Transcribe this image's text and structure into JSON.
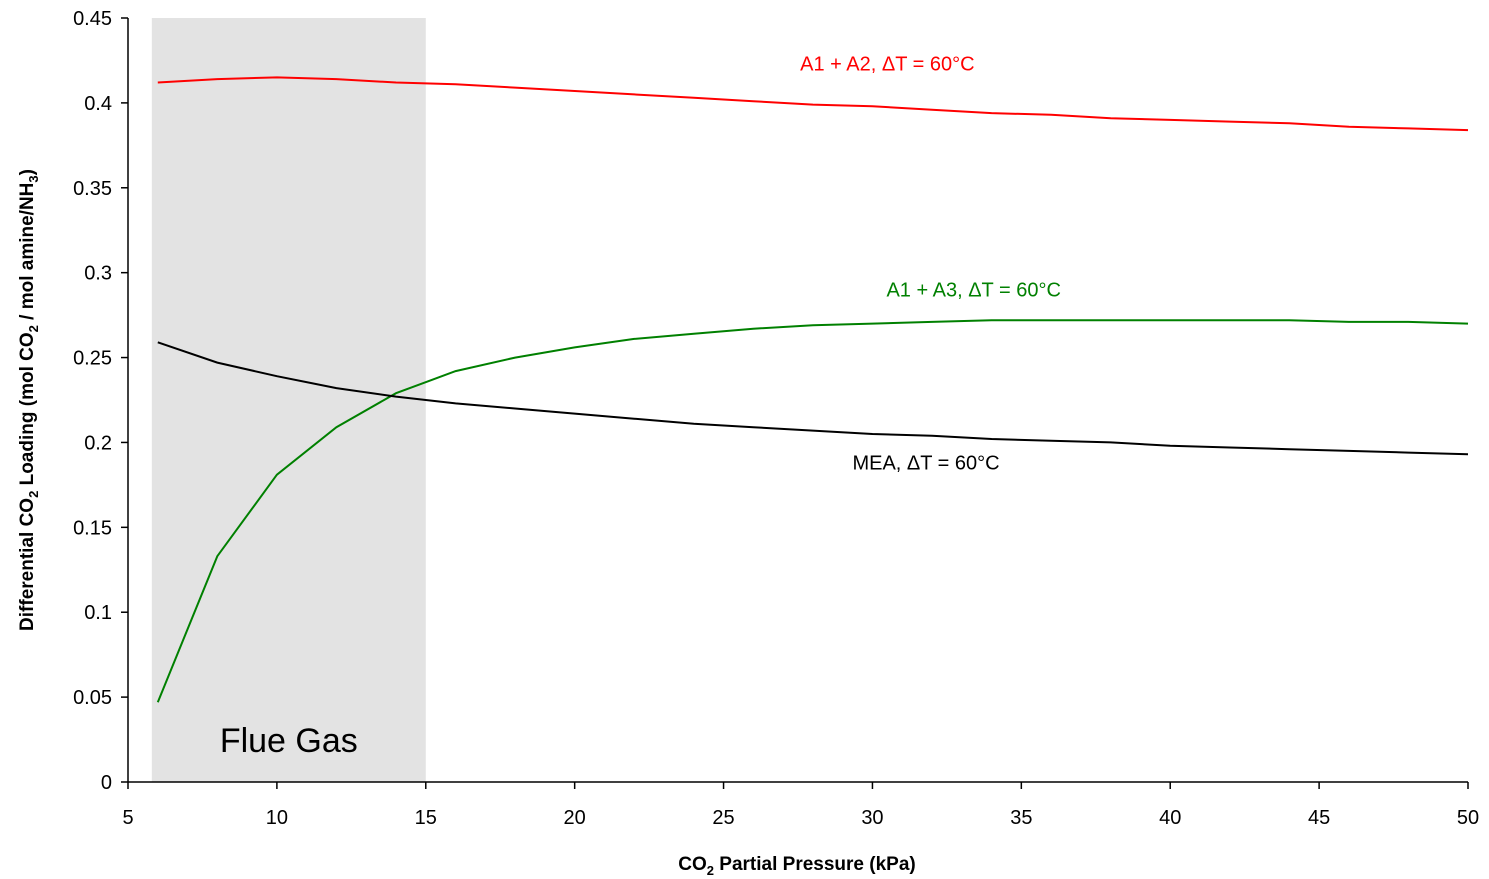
{
  "chart_data": {
    "type": "line",
    "title": "",
    "xlabel": "CO",
    "xlabel_sub": "2",
    "xlabel_rest": " Partial Pressure (kPa)",
    "ylabel": "Differential CO",
    "ylabel_sub": "2",
    "ylabel_mid": " Loading (mol CO",
    "ylabel_sub2": "2",
    "ylabel_mid2": " / mol amine/NH",
    "ylabel_sub3": "3",
    "ylabel_end": ")",
    "xlim": [
      5,
      50
    ],
    "ylim": [
      0,
      0.45
    ],
    "x_ticks": [
      5,
      10,
      15,
      20,
      25,
      30,
      35,
      40,
      45,
      50
    ],
    "y_ticks": [
      0,
      0.05,
      0.1,
      0.15,
      0.2,
      0.25,
      0.3,
      0.35,
      0.4,
      0.45
    ],
    "grid": false,
    "shaded_region": {
      "x_range": [
        5.8,
        15
      ],
      "label": "Flue Gas",
      "color": "#e3e3e3"
    },
    "series": [
      {
        "name": "A1 + A2, ΔT = 60°C",
        "color": "#ff0000",
        "x": [
          6,
          8,
          10,
          12,
          14,
          16,
          18,
          20,
          22,
          24,
          26,
          28,
          30,
          32,
          34,
          36,
          38,
          40,
          42,
          44,
          46,
          48,
          50
        ],
        "y": [
          0.412,
          0.414,
          0.415,
          0.414,
          0.412,
          0.411,
          0.409,
          0.407,
          0.405,
          0.403,
          0.401,
          0.399,
          0.398,
          0.396,
          0.394,
          0.393,
          0.391,
          0.39,
          0.389,
          0.388,
          0.386,
          0.385,
          0.384
        ]
      },
      {
        "name": "A1 + A3, ΔT = 60°C",
        "color": "#008000",
        "x": [
          6,
          8,
          10,
          12,
          14,
          16,
          18,
          20,
          22,
          24,
          26,
          28,
          30,
          32,
          34,
          36,
          38,
          40,
          42,
          44,
          46,
          48,
          50
        ],
        "y": [
          0.047,
          0.133,
          0.181,
          0.209,
          0.229,
          0.242,
          0.25,
          0.256,
          0.261,
          0.264,
          0.267,
          0.269,
          0.27,
          0.271,
          0.272,
          0.272,
          0.272,
          0.272,
          0.272,
          0.272,
          0.271,
          0.271,
          0.27
        ]
      },
      {
        "name": "MEA, ΔT = 60°C",
        "color": "#000000",
        "x": [
          6,
          8,
          10,
          12,
          14,
          16,
          18,
          20,
          22,
          24,
          26,
          28,
          30,
          32,
          34,
          36,
          38,
          40,
          42,
          44,
          46,
          48,
          50
        ],
        "y": [
          0.259,
          0.247,
          0.239,
          0.232,
          0.227,
          0.223,
          0.22,
          0.217,
          0.214,
          0.211,
          0.209,
          0.207,
          0.205,
          0.204,
          0.202,
          0.201,
          0.2,
          0.198,
          0.197,
          0.196,
          0.195,
          0.194,
          0.193
        ]
      }
    ],
    "annotations": [
      {
        "text": "A1 + A2, ΔT = 60°C",
        "x": 30.5,
        "y": 0.419,
        "color": "#ff0000"
      },
      {
        "text": "A1 + A3, ΔT = 60°C",
        "x": 33.4,
        "y": 0.286,
        "color": "#008000"
      },
      {
        "text": "MEA, ΔT = 60°C",
        "x": 31.8,
        "y": 0.184,
        "color": "#000000"
      }
    ]
  }
}
